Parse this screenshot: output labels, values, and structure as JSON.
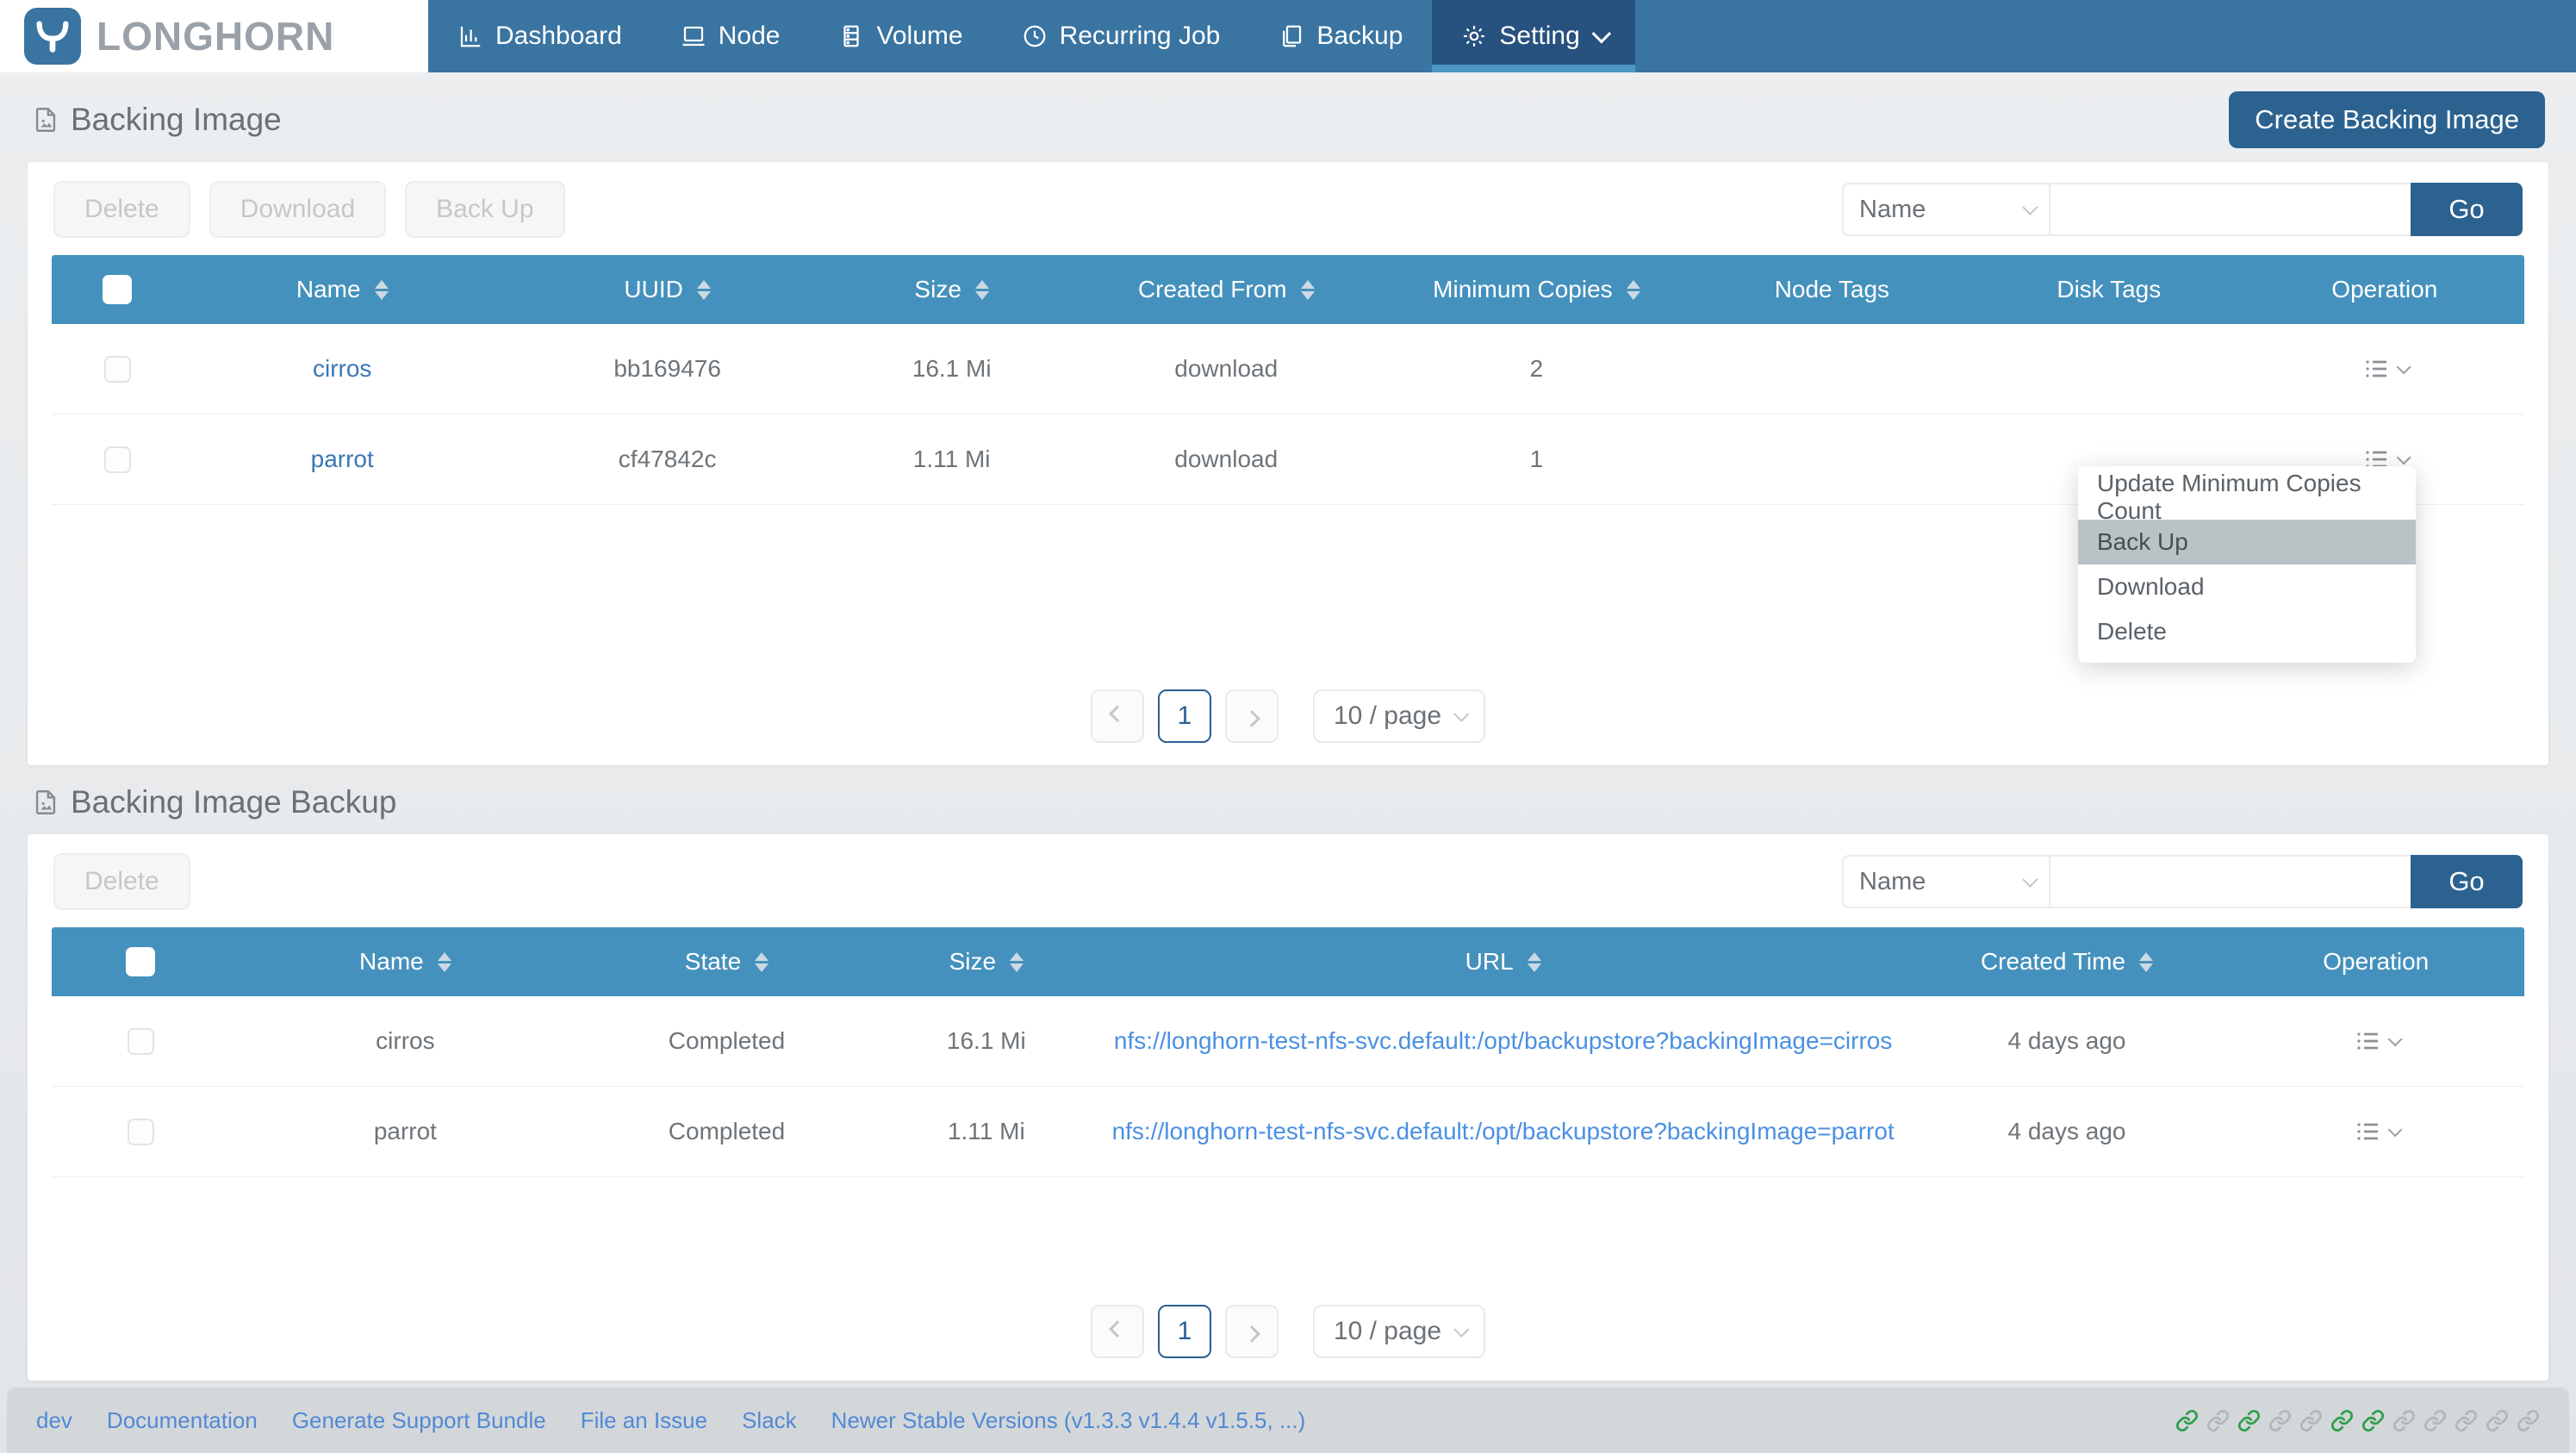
{
  "brand": {
    "name": "LONGHORN"
  },
  "nav": {
    "items": [
      {
        "label": "Dashboard",
        "icon": "dashboard-icon",
        "active": false
      },
      {
        "label": "Node",
        "icon": "node-icon",
        "active": false
      },
      {
        "label": "Volume",
        "icon": "volume-icon",
        "active": false
      },
      {
        "label": "Recurring Job",
        "icon": "recurring-job-icon",
        "active": false
      },
      {
        "label": "Backup",
        "icon": "backup-icon",
        "active": false
      },
      {
        "label": "Setting",
        "icon": "setting-icon",
        "active": true
      }
    ]
  },
  "backing_image": {
    "title": "Backing Image",
    "create_button": "Create Backing Image",
    "toolbar": {
      "delete": "Delete",
      "download": "Download",
      "backup": "Back Up"
    },
    "filter": {
      "field": "Name",
      "input_value": "",
      "go": "Go"
    },
    "columns": [
      "Name",
      "UUID",
      "Size",
      "Created From",
      "Minimum Copies",
      "Node Tags",
      "Disk Tags",
      "Operation"
    ],
    "rows": [
      {
        "name": "cirros",
        "uuid": "bb169476",
        "size": "16.1 Mi",
        "created_from": "download",
        "min_copies": "2",
        "node_tags": "",
        "disk_tags": ""
      },
      {
        "name": "parrot",
        "uuid": "cf47842c",
        "size": "1.11 Mi",
        "created_from": "download",
        "min_copies": "1",
        "node_tags": "",
        "disk_tags": ""
      }
    ],
    "pagination": {
      "page": "1",
      "page_size": "10 / page"
    }
  },
  "operation_menu": {
    "items": [
      "Update Minimum Copies Count",
      "Back Up",
      "Download",
      "Delete"
    ],
    "highlighted": "Back Up"
  },
  "backing_image_backup": {
    "title": "Backing Image Backup",
    "toolbar": {
      "delete": "Delete"
    },
    "filter": {
      "field": "Name",
      "input_value": "",
      "go": "Go"
    },
    "columns": [
      "Name",
      "State",
      "Size",
      "URL",
      "Created Time",
      "Operation"
    ],
    "rows": [
      {
        "name": "cirros",
        "state": "Completed",
        "size": "16.1 Mi",
        "url": "nfs://longhorn-test-nfs-svc.default:/opt/backupstore?backingImage=cirros",
        "created_time": "4 days ago"
      },
      {
        "name": "parrot",
        "state": "Completed",
        "size": "1.11 Mi",
        "url": "nfs://longhorn-test-nfs-svc.default:/opt/backupstore?backingImage=parrot",
        "created_time": "4 days ago"
      }
    ],
    "pagination": {
      "page": "1",
      "page_size": "10 / page"
    }
  },
  "footer": {
    "links": [
      "dev",
      "Documentation",
      "Generate Support Bundle",
      "File an Issue",
      "Slack",
      "Newer Stable Versions (v1.3.3 v1.4.4 v1.5.5, ...)"
    ],
    "link_icons": [
      {
        "status": "connected"
      },
      {
        "status": "disconnected"
      },
      {
        "status": "connected"
      },
      {
        "status": "disconnected"
      },
      {
        "status": "disconnected"
      },
      {
        "status": "connected"
      },
      {
        "status": "connected"
      },
      {
        "status": "disconnected"
      },
      {
        "status": "disconnected"
      },
      {
        "status": "disconnected"
      },
      {
        "status": "disconnected"
      },
      {
        "status": "disconnected"
      }
    ]
  },
  "colors": {
    "nav_blue": "#3a74a1",
    "nav_active_blue": "#27517e",
    "nav_underline": "#4b97c4",
    "table_header_blue": "#4591bd",
    "primary_button_blue": "#2c628f",
    "link_blue": "#4a90e2",
    "connected_green": "#2f9e4c",
    "menu_highlight": "#b9c3c6"
  }
}
